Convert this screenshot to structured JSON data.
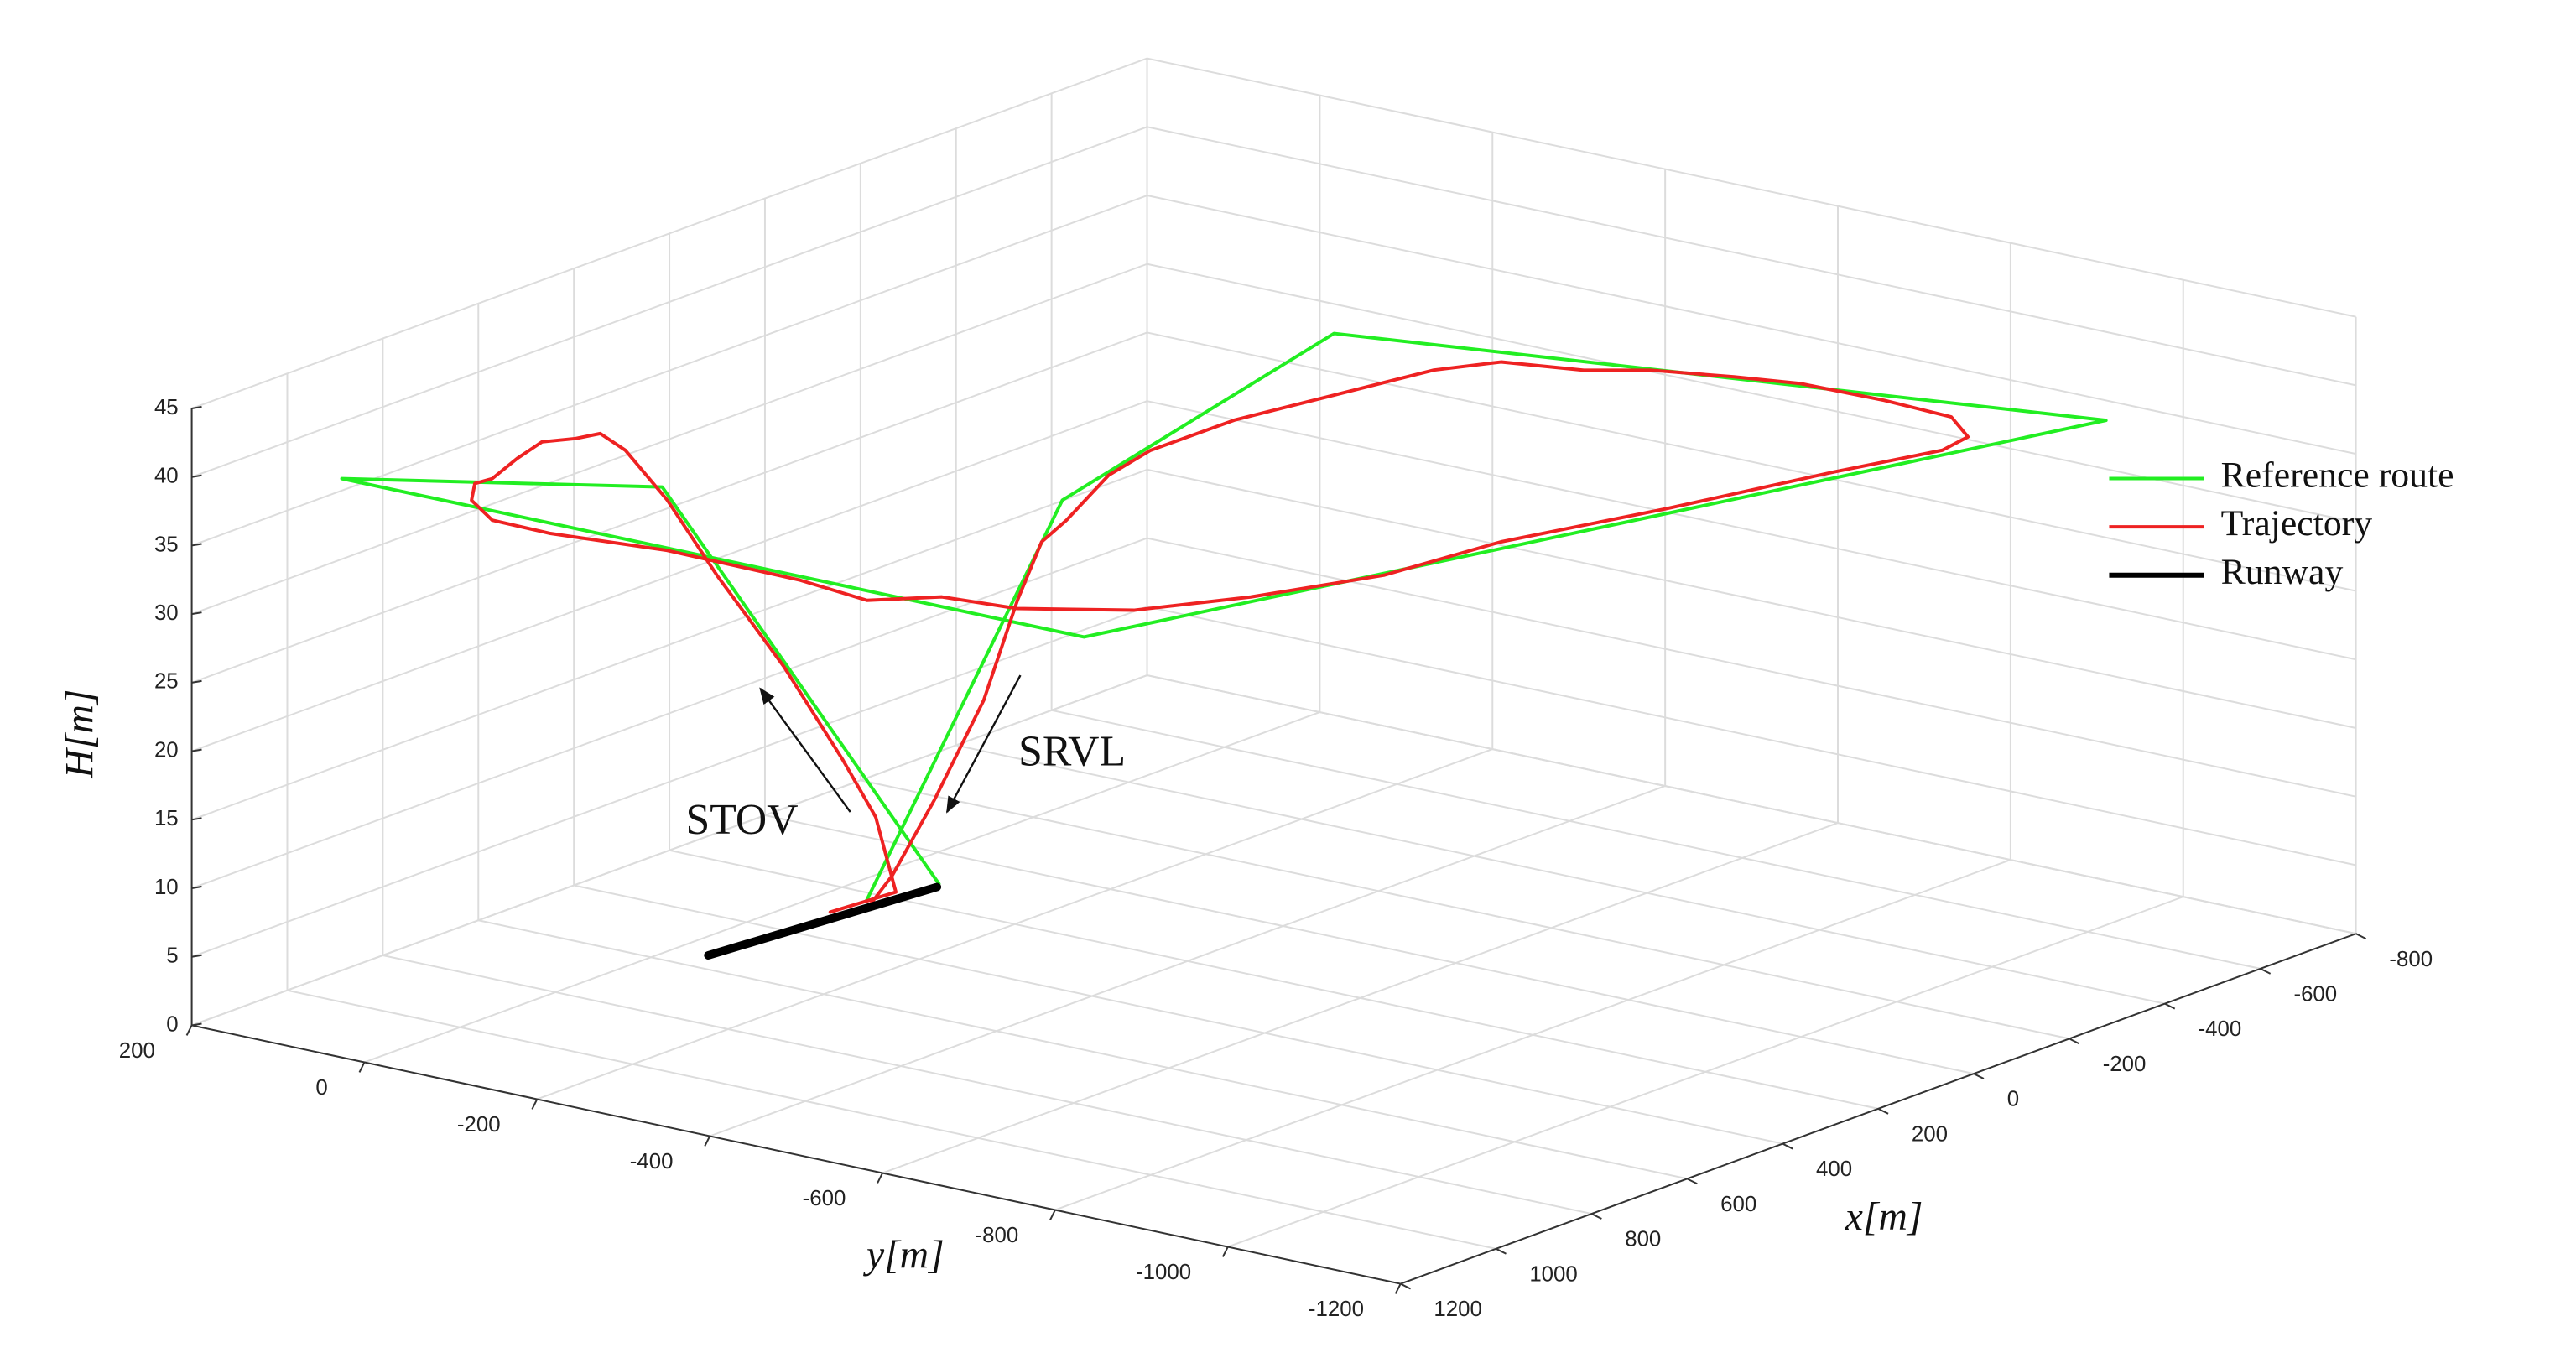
{
  "chart_data": {
    "type": "line3d",
    "xlabel": "x[m]",
    "ylabel": "y[m]",
    "zlabel": "H[m]",
    "xlim": [
      -800,
      1200
    ],
    "xticks": [
      -800,
      -600,
      -400,
      -200,
      0,
      200,
      400,
      600,
      800,
      1000,
      1200
    ],
    "ylim": [
      -1200,
      200
    ],
    "yticks": [
      -1200,
      -1000,
      -800,
      -600,
      -400,
      -200,
      0,
      200
    ],
    "zlim": [
      0,
      45
    ],
    "zticks": [
      0,
      5,
      10,
      15,
      20,
      25,
      30,
      35,
      40,
      45
    ],
    "grid": true,
    "legend": "east",
    "annotations": [
      "STOV",
      "SRVL"
    ],
    "series": [
      {
        "name": "Reference route",
        "color": "#22ee22",
        "x": [
          113,
          873,
          1090,
          1089,
          -481,
          -199,
          612,
          228
        ],
        "y": [
          -64,
          -164,
          87,
          -772,
          -1087,
          -349,
          -483,
          -44
        ],
        "z": [
          0,
          40,
          40,
          40,
          40,
          40,
          40,
          0
        ]
      },
      {
        "name": "Trajectory",
        "color": "#ee2222",
        "x": [
          299,
          176,
          267,
          330,
          439,
          556,
          620,
          670,
          728,
          765,
          803,
          882,
          974,
          1005,
          1068,
          1124,
          1127,
          1098,
          1103,
          1124,
          1054,
          1038,
          954,
          816,
          635,
          424,
          176,
          -85,
          -247,
          -315,
          -374,
          -382,
          -378,
          -351,
          -311,
          -259,
          -225,
          -144,
          24,
          191,
          364,
          486,
          681,
          630,
          612,
          603,
          508,
          366,
          258
        ],
        "y": [
          -41,
          -49,
          -76,
          -72,
          -65,
          -52,
          -30,
          -9,
          -12,
          -4,
          14,
          -1,
          -23,
          -20,
          -51,
          -106,
          -175,
          -294,
          -451,
          -540,
          -588,
          -666,
          -755,
          -814,
          -868,
          -887,
          -942,
          -991,
          -1027,
          -1019,
          -967,
          -885,
          -790,
          -728,
          -654,
          -605,
          -528,
          -495,
          -472,
          -449,
          -448,
          -467,
          -526,
          -469,
          -431,
          -387,
          -277,
          -150,
          -61
        ],
        "z": [
          0,
          0,
          7,
          12,
          20,
          28,
          34,
          38,
          40,
          40,
          40,
          40,
          40,
          40,
          40,
          40,
          40,
          40,
          40,
          40,
          40,
          40,
          40,
          40,
          40,
          40,
          40,
          40,
          40,
          40,
          40,
          40,
          40,
          40,
          40,
          40,
          40,
          40,
          40,
          40,
          40,
          40,
          40,
          37,
          32,
          24,
          14,
          5,
          0
        ]
      },
      {
        "name": "Runway",
        "color": "#000000",
        "x": [
          549,
          126
        ],
        "y": [
          -38,
          -69
        ],
        "z": [
          0,
          0
        ]
      }
    ]
  }
}
